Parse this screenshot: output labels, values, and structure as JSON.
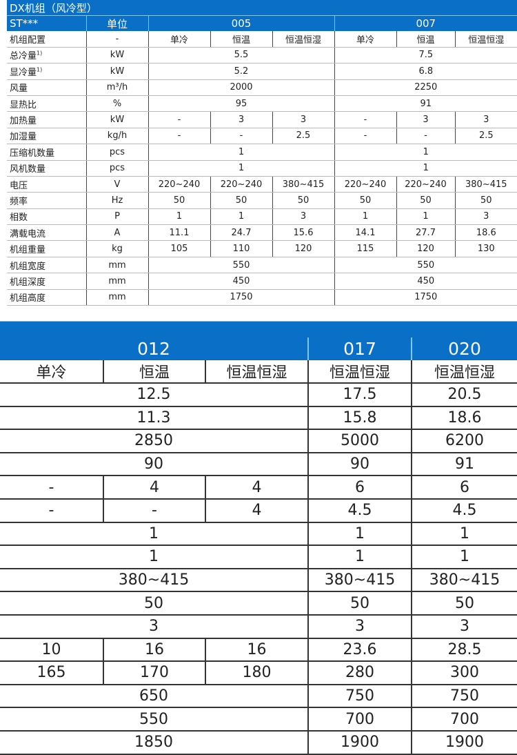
{
  "table1": {
    "title": "DX机组（风冷型）",
    "header": [
      "ST***",
      "单位",
      "005",
      "007"
    ],
    "rows": [
      {
        "label": "机组配置",
        "unit": "-",
        "cells": [
          [
            "单冷",
            1
          ],
          [
            "恒温",
            1
          ],
          [
            "恒温恒湿",
            1
          ],
          [
            "单冷",
            1
          ],
          [
            "恒温",
            1
          ],
          [
            "恒温恒湿",
            1
          ]
        ]
      },
      {
        "label": "总冷量",
        "note": "1)",
        "unit": "kW",
        "cells": [
          [
            "5.5",
            3
          ],
          [
            "7.5",
            3
          ]
        ]
      },
      {
        "label": "显冷量",
        "note": "1)",
        "unit": "kW",
        "cells": [
          [
            "5.2",
            3
          ],
          [
            "6.8",
            3
          ]
        ]
      },
      {
        "label": "风量",
        "unit": "m³/h",
        "cells": [
          [
            "2000",
            3
          ],
          [
            "2250",
            3
          ]
        ]
      },
      {
        "label": "显热比",
        "unit": "%",
        "cells": [
          [
            "95",
            3
          ],
          [
            "91",
            3
          ]
        ]
      },
      {
        "label": "加热量",
        "unit": "kW",
        "cells": [
          [
            "-",
            1
          ],
          [
            "3",
            1
          ],
          [
            "3",
            1
          ],
          [
            "-",
            1
          ],
          [
            "3",
            1
          ],
          [
            "3",
            1
          ]
        ]
      },
      {
        "label": "加湿量",
        "unit": "kg/h",
        "cells": [
          [
            "-",
            1
          ],
          [
            "-",
            1
          ],
          [
            "2.5",
            1
          ],
          [
            "-",
            1
          ],
          [
            "-",
            1
          ],
          [
            "2.5",
            1
          ]
        ]
      },
      {
        "label": "压缩机数量",
        "unit": "pcs",
        "cells": [
          [
            "1",
            3
          ],
          [
            "1",
            3
          ]
        ]
      },
      {
        "label": "风机数量",
        "unit": "pcs",
        "cells": [
          [
            "1",
            3
          ],
          [
            "1",
            3
          ]
        ]
      },
      {
        "label": "电压",
        "unit": "V",
        "cells": [
          [
            "220~240",
            1
          ],
          [
            "220~240",
            1
          ],
          [
            "380~415",
            1
          ],
          [
            "220~240",
            1
          ],
          [
            "220~240",
            1
          ],
          [
            "380~415",
            1
          ]
        ]
      },
      {
        "label": "频率",
        "unit": "Hz",
        "cells": [
          [
            "50",
            1
          ],
          [
            "50",
            1
          ],
          [
            "50",
            1
          ],
          [
            "50",
            1
          ],
          [
            "50",
            1
          ],
          [
            "50",
            1
          ]
        ]
      },
      {
        "label": "相数",
        "unit": "P",
        "cells": [
          [
            "1",
            1
          ],
          [
            "1",
            1
          ],
          [
            "3",
            1
          ],
          [
            "1",
            1
          ],
          [
            "1",
            1
          ],
          [
            "3",
            1
          ]
        ]
      },
      {
        "label": "满载电流",
        "unit": "A",
        "cells": [
          [
            "11.1",
            1
          ],
          [
            "24.7",
            1
          ],
          [
            "15.6",
            1
          ],
          [
            "14.1",
            1
          ],
          [
            "27.7",
            1
          ],
          [
            "18.6",
            1
          ]
        ]
      },
      {
        "label": "机组重量",
        "unit": "kg",
        "cells": [
          [
            "105",
            1
          ],
          [
            "110",
            1
          ],
          [
            "120",
            1
          ],
          [
            "115",
            1
          ],
          [
            "120",
            1
          ],
          [
            "130",
            1
          ]
        ]
      },
      {
        "label": "机组宽度",
        "unit": "mm",
        "cells": [
          [
            "550",
            3
          ],
          [
            "550",
            3
          ]
        ]
      },
      {
        "label": "机组深度",
        "unit": "mm",
        "cells": [
          [
            "450",
            3
          ],
          [
            "450",
            3
          ]
        ]
      },
      {
        "label": "机组高度",
        "unit": "mm",
        "cells": [
          [
            "1750",
            3
          ],
          [
            "1750",
            3
          ]
        ]
      }
    ]
  },
  "table2": {
    "header": [
      [
        "012",
        3
      ],
      [
        "017",
        1
      ],
      [
        "020",
        1
      ]
    ],
    "rows": [
      [
        [
          "单冷",
          1
        ],
        [
          "恒温",
          1
        ],
        [
          "恒温恒湿",
          1
        ],
        [
          "恒温恒湿",
          1
        ],
        [
          "恒温恒湿",
          1
        ]
      ],
      [
        [
          "12.5",
          3
        ],
        [
          "17.5",
          1
        ],
        [
          "20.5",
          1
        ]
      ],
      [
        [
          "11.3",
          3
        ],
        [
          "15.8",
          1
        ],
        [
          "18.6",
          1
        ]
      ],
      [
        [
          "2850",
          3
        ],
        [
          "5000",
          1
        ],
        [
          "6200",
          1
        ]
      ],
      [
        [
          "90",
          3
        ],
        [
          "90",
          1
        ],
        [
          "91",
          1
        ]
      ],
      [
        [
          "-",
          1
        ],
        [
          "4",
          1
        ],
        [
          "4",
          1
        ],
        [
          "6",
          1
        ],
        [
          "6",
          1
        ]
      ],
      [
        [
          "-",
          1
        ],
        [
          "-",
          1
        ],
        [
          "4",
          1
        ],
        [
          "4.5",
          1
        ],
        [
          "4.5",
          1
        ]
      ],
      [
        [
          "1",
          3
        ],
        [
          "1",
          1
        ],
        [
          "1",
          1
        ]
      ],
      [
        [
          "1",
          3
        ],
        [
          "1",
          1
        ],
        [
          "1",
          1
        ]
      ],
      [
        [
          "380~415",
          3
        ],
        [
          "380~415",
          1
        ],
        [
          "380~415",
          1
        ]
      ],
      [
        [
          "50",
          3
        ],
        [
          "50",
          1
        ],
        [
          "50",
          1
        ]
      ],
      [
        [
          "3",
          3
        ],
        [
          "3",
          1
        ],
        [
          "3",
          1
        ]
      ],
      [
        [
          "10",
          1
        ],
        [
          "16",
          1
        ],
        [
          "16",
          1
        ],
        [
          "23.6",
          1
        ],
        [
          "28.5",
          1
        ]
      ],
      [
        [
          "165",
          1
        ],
        [
          "170",
          1
        ],
        [
          "180",
          1
        ],
        [
          "280",
          1
        ],
        [
          "300",
          1
        ]
      ],
      [
        [
          "650",
          3
        ],
        [
          "750",
          1
        ],
        [
          "750",
          1
        ]
      ],
      [
        [
          "550",
          3
        ],
        [
          "700",
          1
        ],
        [
          "700",
          1
        ]
      ],
      [
        [
          "1850",
          3
        ],
        [
          "1900",
          1
        ],
        [
          "1900",
          1
        ]
      ]
    ]
  },
  "colors": {
    "header_blue": "#0a6fc6",
    "divider_light": "#7ec8f0"
  }
}
